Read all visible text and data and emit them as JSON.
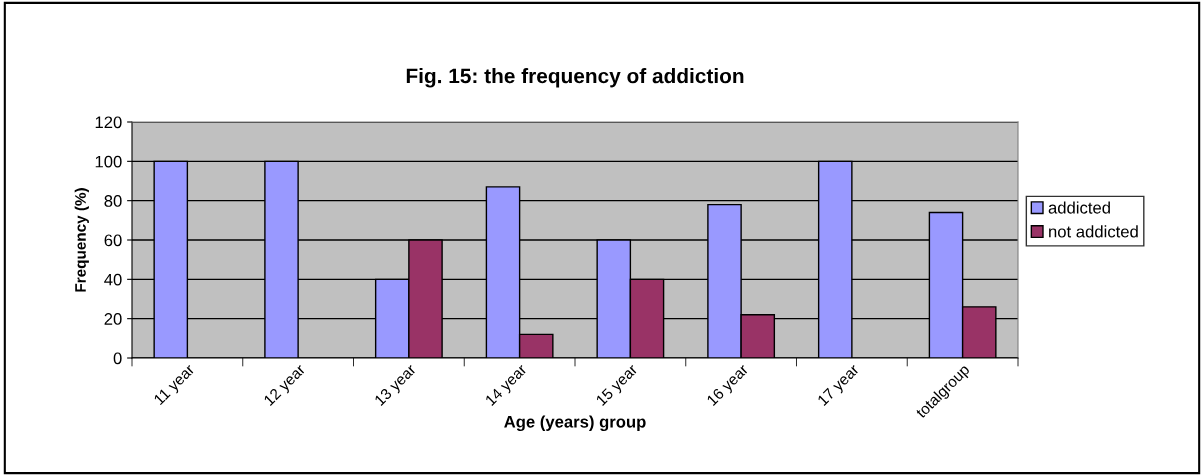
{
  "chart_data": {
    "type": "bar",
    "title": "Fig. 15: the frequency of addiction",
    "xlabel": "Age (years) group",
    "ylabel": "Frequency (%)",
    "categories": [
      "11 year",
      "12 year",
      "13 year",
      "14 year",
      "15 year",
      "16 year",
      "17 year",
      "totalgroup"
    ],
    "series": [
      {
        "name": "addicted",
        "color": "#9999ff",
        "values": [
          100,
          100,
          40,
          87,
          60,
          78,
          100,
          74
        ]
      },
      {
        "name": "not addicted",
        "color": "#993366",
        "values": [
          null,
          null,
          60,
          12,
          40,
          22,
          null,
          26
        ]
      }
    ],
    "ylim": [
      0,
      120
    ],
    "yticks": [
      0,
      20,
      40,
      60,
      80,
      100,
      120
    ],
    "grid": "y",
    "legend": "right"
  }
}
